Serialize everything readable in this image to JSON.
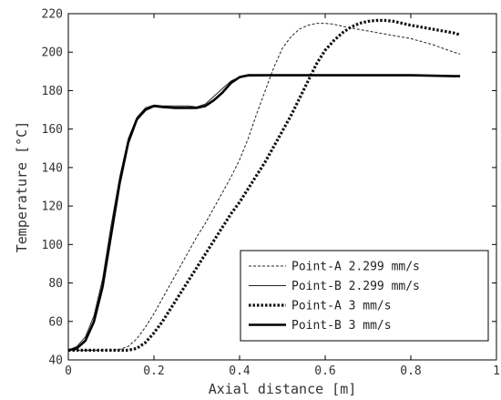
{
  "chart_data": {
    "type": "line",
    "title": "",
    "xlabel": "Axial distance [m]",
    "ylabel": "Temperature [°C]",
    "xlim": [
      0,
      1
    ],
    "ylim": [
      40,
      220
    ],
    "xticks": [
      0,
      0.2,
      0.4,
      0.6,
      0.8,
      1
    ],
    "xtick_labels": [
      "0",
      "0.2",
      "0.4",
      "0.6",
      "0.8",
      "1"
    ],
    "yticks": [
      40,
      60,
      80,
      100,
      120,
      140,
      160,
      180,
      200,
      220
    ],
    "ytick_labels": [
      "40",
      "60",
      "80",
      "100",
      "120",
      "140",
      "160",
      "180",
      "200",
      "220"
    ],
    "grid": false,
    "legend_position": "bottom-right",
    "series": [
      {
        "name": "Point-A 2.299 mm/s",
        "style": "thin-dashed",
        "x": [
          0,
          0.05,
          0.1,
          0.12,
          0.14,
          0.16,
          0.18,
          0.2,
          0.22,
          0.24,
          0.26,
          0.28,
          0.3,
          0.32,
          0.34,
          0.36,
          0.38,
          0.4,
          0.42,
          0.44,
          0.46,
          0.48,
          0.5,
          0.52,
          0.54,
          0.56,
          0.58,
          0.6,
          0.62,
          0.65,
          0.7,
          0.75,
          0.8,
          0.85,
          0.9,
          0.915
        ],
        "y": [
          45,
          45,
          45,
          45.5,
          47,
          51,
          57,
          64,
          72,
          80,
          88,
          96,
          104,
          111,
          119,
          127,
          135,
          144,
          155,
          168,
          180,
          192,
          202,
          208,
          212,
          214,
          215,
          215,
          214.5,
          213,
          211,
          209,
          207,
          204,
          200,
          199
        ]
      },
      {
        "name": "Point-B 2.299 mm/s",
        "style": "thin-solid",
        "x": [
          0,
          0.02,
          0.04,
          0.06,
          0.08,
          0.1,
          0.12,
          0.14,
          0.16,
          0.18,
          0.2,
          0.22,
          0.25,
          0.28,
          0.3,
          0.32,
          0.34,
          0.36,
          0.38,
          0.4,
          0.42,
          0.5,
          0.6,
          0.7,
          0.8,
          0.9,
          0.915
        ],
        "y": [
          45,
          47,
          52,
          63,
          82,
          110,
          135,
          155,
          166,
          171,
          172.5,
          172,
          172,
          172,
          171.5,
          173,
          177,
          181,
          185,
          187,
          187.5,
          188,
          188,
          188,
          188,
          187.5,
          187.5
        ]
      },
      {
        "name": "Point-A 3 mm/s",
        "style": "thick-dotted",
        "x": [
          0,
          0.05,
          0.1,
          0.12,
          0.14,
          0.16,
          0.18,
          0.2,
          0.22,
          0.24,
          0.26,
          0.28,
          0.3,
          0.32,
          0.34,
          0.36,
          0.38,
          0.4,
          0.42,
          0.44,
          0.46,
          0.48,
          0.5,
          0.52,
          0.54,
          0.56,
          0.58,
          0.6,
          0.62,
          0.64,
          0.66,
          0.68,
          0.7,
          0.72,
          0.74,
          0.76,
          0.78,
          0.8,
          0.85,
          0.9,
          0.915
        ],
        "y": [
          45,
          45,
          45,
          45,
          45,
          46,
          49,
          54,
          60,
          67,
          74,
          81,
          88,
          95,
          102,
          109,
          116,
          122,
          129,
          136,
          143,
          151,
          159,
          167,
          176,
          185,
          194,
          201,
          206,
          210,
          213,
          215,
          216,
          216.5,
          216.5,
          216,
          215,
          214,
          212,
          210,
          209
        ]
      },
      {
        "name": "Point-B 3 mm/s",
        "style": "thick-solid",
        "x": [
          0,
          0.02,
          0.04,
          0.06,
          0.08,
          0.1,
          0.12,
          0.14,
          0.16,
          0.18,
          0.2,
          0.22,
          0.25,
          0.28,
          0.3,
          0.32,
          0.34,
          0.36,
          0.38,
          0.4,
          0.42,
          0.5,
          0.6,
          0.7,
          0.8,
          0.9,
          0.915
        ],
        "y": [
          45,
          46,
          50,
          60,
          78,
          105,
          132,
          153,
          165,
          170,
          172,
          171.5,
          171,
          171,
          171,
          172,
          175,
          179,
          184,
          187,
          188,
          188,
          188,
          188,
          188,
          187.5,
          187.5
        ]
      }
    ]
  }
}
